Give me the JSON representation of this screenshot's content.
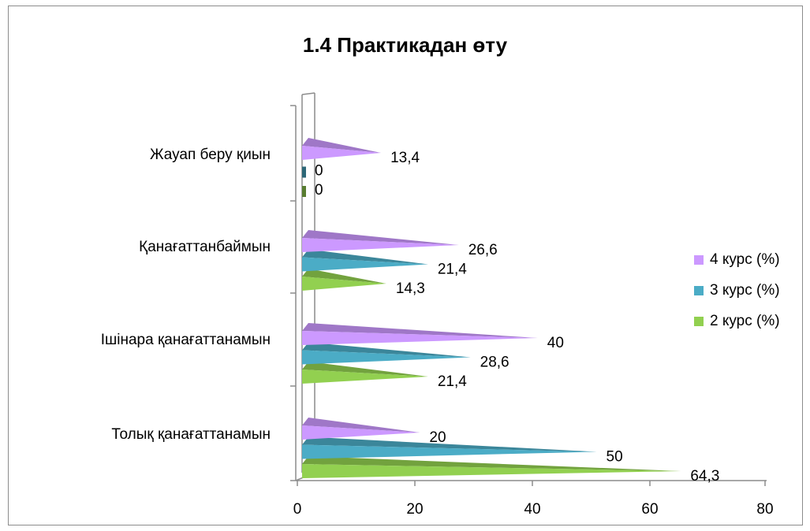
{
  "chart_data": {
    "type": "bar",
    "orientation": "horizontal",
    "title": "1.4 Практикадан өту",
    "categories": [
      "Толық қанағаттанамын",
      "Ішінара қанағаттанамын",
      "Қанағаттанбаймын",
      "Жауап беру қиын"
    ],
    "series": [
      {
        "name": "2 курс (%)",
        "values": [
          64.3,
          21.4,
          14.3,
          0
        ],
        "labels": [
          "64,3",
          "21,4",
          "14,3",
          "0"
        ],
        "color": "#92d050"
      },
      {
        "name": "3 курс (%)",
        "values": [
          50,
          28.6,
          21.4,
          0
        ],
        "labels": [
          "50",
          "28,6",
          "21,4",
          "0"
        ],
        "color": "#4bacc6"
      },
      {
        "name": "4 курс (%)",
        "values": [
          20,
          40,
          26.6,
          13.4
        ],
        "labels": [
          "20",
          "40",
          "26,6",
          "13,4"
        ],
        "color": "#cc99ff"
      }
    ],
    "xlim": [
      0,
      80
    ],
    "xticks": [
      "0",
      "20",
      "40",
      "60",
      "80"
    ],
    "legend_position": "right",
    "grid": false
  }
}
